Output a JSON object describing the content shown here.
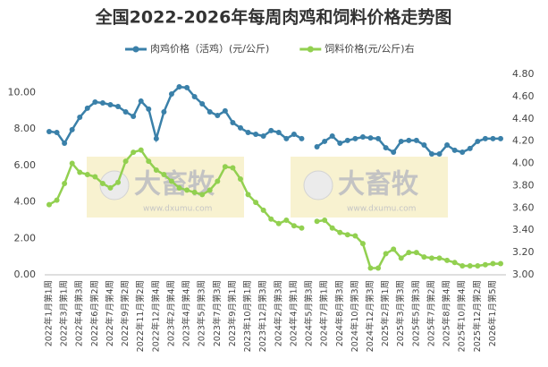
{
  "chart_data": {
    "type": "line",
    "title": "全国2022-2026年每周肉鸡和饲料价格走势图",
    "watermark": [
      "大畜牧",
      "www.dxumu.com"
    ],
    "categories": [
      "2022年1月第1周",
      null,
      "2022年3月第1周",
      null,
      "2022年4月第3周",
      null,
      "2022年6月第2周",
      null,
      "2022年7月第4周",
      null,
      "2022年9月第2周",
      null,
      "2022年11月第2周",
      null,
      "2022年12月第4周",
      null,
      "2023年2月第4周",
      null,
      "2023年4月第4周",
      null,
      "2023年5月第3周",
      null,
      "2023年7月第3周",
      null,
      "2023年9月第1周",
      null,
      "2023年10月第1周",
      null,
      "2023年12月第3周",
      null,
      "2024年2月第3周",
      null,
      "2024年4月第1周",
      null,
      "2024年5月第3周",
      null,
      "2024年7月第1周",
      null,
      "2024年8月第3周",
      null,
      "2024年10月第3周",
      null,
      "2024年12月第3周",
      null,
      "2025年2月第1周",
      null,
      "2025年3月第3周",
      null,
      "2025年5月第3周",
      null,
      "2025年7月第2周",
      null,
      "2025年8月第4周",
      null,
      "2025年10月第4周",
      null,
      "2025年12月第2周",
      null,
      "2026年1月第5周",
      null
    ],
    "series": [
      {
        "name": "肉鸡价格（活鸡）(元/公斤)",
        "color": "#3a80a9",
        "values": [
          7.86,
          7.81,
          7.22,
          7.96,
          8.64,
          9.14,
          9.48,
          9.43,
          9.33,
          9.23,
          8.94,
          8.69,
          9.53,
          9.09,
          7.47,
          8.94,
          9.92,
          10.31,
          10.27,
          9.77,
          9.38,
          8.94,
          8.74,
          8.99,
          8.35,
          8.06,
          7.81,
          7.71,
          7.61,
          7.91,
          7.81,
          7.47,
          7.71,
          7.47,
          null,
          7.02,
          7.32,
          7.61,
          7.22,
          7.37,
          7.47,
          7.56,
          7.51,
          7.47,
          6.97,
          6.73,
          7.32,
          7.37,
          7.37,
          7.12,
          6.63,
          6.63,
          7.12,
          6.83,
          6.73,
          6.93,
          7.32,
          7.47,
          7.47,
          7.47
        ]
      },
      {
        "name": "饲料价格(元/公斤)右",
        "color": "#92d050",
        "axis": "y2",
        "values": [
          3.63,
          3.67,
          3.82,
          4.0,
          3.92,
          3.9,
          3.88,
          3.82,
          3.78,
          3.83,
          4.02,
          4.1,
          4.12,
          4.02,
          3.94,
          3.9,
          3.84,
          3.78,
          3.76,
          3.74,
          3.72,
          3.76,
          3.84,
          3.97,
          3.96,
          3.86,
          3.72,
          3.65,
          3.58,
          3.5,
          3.46,
          3.49,
          3.44,
          3.42,
          null,
          3.48,
          3.49,
          3.42,
          3.38,
          3.36,
          3.35,
          3.28,
          3.06,
          3.06,
          3.19,
          3.23,
          3.15,
          3.2,
          3.2,
          3.16,
          3.15,
          3.15,
          3.13,
          3.11,
          3.08,
          3.08,
          3.08,
          3.09,
          3.1,
          3.1
        ]
      }
    ],
    "ylim": [
      0,
      11
    ],
    "yticks": [
      {
        "value": 0,
        "label": "0.00"
      },
      {
        "value": 2,
        "label": "2.00"
      },
      {
        "value": 4,
        "label": "4.00"
      },
      {
        "value": 6,
        "label": "6.00"
      },
      {
        "value": 8,
        "label": "8.00"
      },
      {
        "value": 10,
        "label": "10.00"
      }
    ],
    "y2lim": [
      3,
      4.8
    ],
    "y2ticks": [
      {
        "value": 3,
        "label": "3.00"
      },
      {
        "value": 3.2,
        "label": "3.20"
      },
      {
        "value": 3.4,
        "label": "3.40"
      },
      {
        "value": 3.6,
        "label": "3.60"
      },
      {
        "value": 3.8,
        "label": "3.80"
      },
      {
        "value": 4,
        "label": "4.00"
      },
      {
        "value": 4.2,
        "label": "4.20"
      },
      {
        "value": 4.4,
        "label": "4.40"
      },
      {
        "value": 4.6,
        "label": "4.60"
      },
      {
        "value": 4.8,
        "label": "4.80"
      }
    ],
    "legend": "top",
    "grid": false
  }
}
